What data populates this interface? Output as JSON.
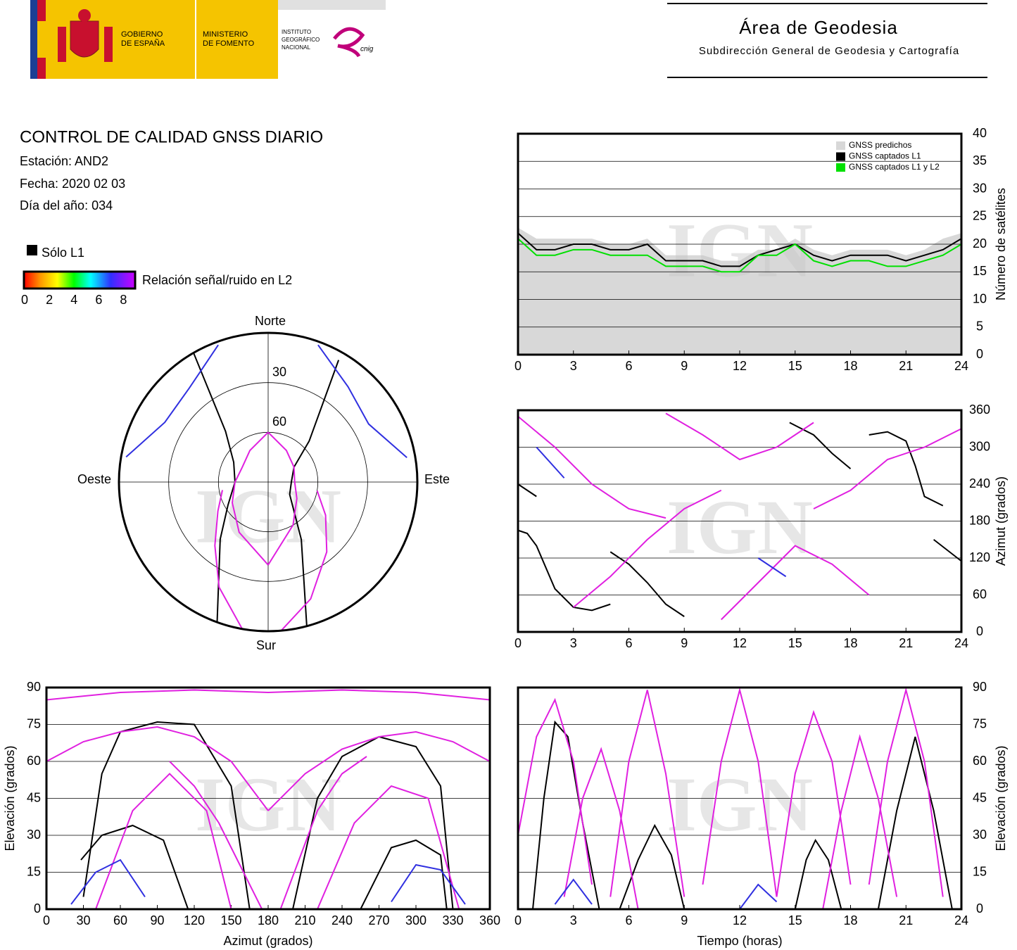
{
  "header": {
    "gobierno": [
      "GOBIERNO",
      "DE ESPAÑA"
    ],
    "ministerio": [
      "MINISTERIO",
      "DE FOMENTO"
    ],
    "instituto": [
      "INSTITUTO",
      "GEOGRÁFICO",
      "NACIONAL"
    ],
    "cnig": "cnig",
    "area": "Área de Geodesia",
    "subarea": "Subdirección General de Geodesia y Cartografía"
  },
  "report": {
    "title": "CONTROL DE CALIDAD GNSS DIARIO",
    "station": "Estación: AND2",
    "date": "Fecha: 2020 02 03",
    "doy": "Día del año: 034"
  },
  "legend": {
    "l1_only": "Sólo L1",
    "snr_label": "Relación señal/ruido en L2",
    "snr_lim": [
      0,
      9
    ],
    "snr_ticks": [
      0,
      2,
      4,
      6,
      8
    ]
  },
  "watermark": "IGN",
  "chart_data": [
    {
      "type": "polar",
      "directions": {
        "north": "Norte",
        "south": "Sur",
        "east": "Este",
        "west": "Oeste"
      },
      "rlim": [
        0,
        90
      ],
      "rticks": [
        30,
        60
      ],
      "series": [
        {
          "color": "#000000",
          "x": [
            30,
            45,
            60,
            90,
            120,
            150,
            165
          ],
          "values": [
            5,
            55,
            72,
            76,
            75,
            50,
            0
          ]
        },
        {
          "color": "#000000",
          "x": [
            200,
            220,
            240,
            270,
            300,
            320,
            330
          ],
          "values": [
            0,
            45,
            62,
            70,
            66,
            50,
            0
          ]
        },
        {
          "color": "#e020e0",
          "x": [
            0,
            30,
            60,
            90,
            120,
            150,
            180
          ],
          "values": [
            60,
            68,
            72,
            74,
            70,
            60,
            40
          ]
        },
        {
          "color": "#e020e0",
          "x": [
            180,
            210,
            240,
            270,
            300,
            330,
            360
          ],
          "values": [
            40,
            55,
            65,
            70,
            72,
            68,
            60
          ]
        },
        {
          "color": "#e020e0",
          "x": [
            100,
            120,
            140,
            160,
            175
          ],
          "values": [
            60,
            50,
            35,
            15,
            0
          ]
        },
        {
          "color": "#e020e0",
          "x": [
            190,
            205,
            220,
            240,
            260
          ],
          "values": [
            0,
            20,
            40,
            55,
            62
          ]
        },
        {
          "color": "#3030e0",
          "x": [
            20,
            40,
            60,
            80
          ],
          "values": [
            2,
            15,
            20,
            5
          ]
        },
        {
          "color": "#3030e0",
          "x": [
            280,
            300,
            320,
            340
          ],
          "values": [
            3,
            18,
            16,
            2
          ]
        }
      ]
    },
    {
      "type": "line",
      "ylabel": "Número de satélites",
      "xlim": [
        0,
        24
      ],
      "xticks": [
        0,
        3,
        6,
        9,
        12,
        15,
        18,
        21,
        24
      ],
      "ylim": [
        0,
        40
      ],
      "yticks": [
        0,
        5,
        10,
        15,
        20,
        25,
        30,
        35,
        40
      ],
      "grid": true,
      "legend": "upper right",
      "series": [
        {
          "name": "GNSS predichos",
          "color": "#d8d8d8",
          "style": "area",
          "x": [
            0,
            1,
            2,
            3,
            4,
            5,
            6,
            7,
            8,
            9,
            10,
            11,
            12,
            13,
            14,
            15,
            16,
            17,
            18,
            19,
            20,
            21,
            22,
            23,
            24
          ],
          "values": [
            23,
            21,
            21,
            21,
            21,
            20,
            20,
            21,
            18,
            18,
            18,
            17,
            17,
            19,
            19,
            21,
            19,
            18,
            19,
            19,
            19,
            18,
            19,
            21,
            22
          ]
        },
        {
          "name": "GNSS captados L1",
          "color": "#000000",
          "x": [
            0,
            1,
            2,
            3,
            4,
            5,
            6,
            7,
            8,
            9,
            10,
            11,
            12,
            13,
            14,
            15,
            16,
            17,
            18,
            19,
            20,
            21,
            22,
            23,
            24
          ],
          "values": [
            22,
            19,
            19,
            20,
            20,
            19,
            19,
            20,
            17,
            17,
            17,
            16,
            16,
            18,
            19,
            20,
            18,
            17,
            18,
            18,
            18,
            17,
            18,
            19,
            21
          ]
        },
        {
          "name": "GNSS captados L1 y L2",
          "color": "#00e000",
          "x": [
            0,
            1,
            2,
            3,
            4,
            5,
            6,
            7,
            8,
            9,
            10,
            11,
            12,
            13,
            14,
            15,
            16,
            17,
            18,
            19,
            20,
            21,
            22,
            23,
            24
          ],
          "values": [
            21,
            18,
            18,
            19,
            19,
            18,
            18,
            18,
            16,
            16,
            16,
            15,
            15,
            18,
            18,
            20,
            17,
            16,
            17,
            17,
            16,
            16,
            17,
            18,
            20
          ]
        }
      ]
    },
    {
      "type": "line",
      "ylabel": "Azimut (grados)",
      "xlim": [
        0,
        24
      ],
      "xticks": [
        0,
        3,
        6,
        9,
        12,
        15,
        18,
        21,
        24
      ],
      "ylim": [
        0,
        360
      ],
      "yticks": [
        0,
        60,
        120,
        180,
        240,
        300,
        360
      ],
      "grid": true,
      "series": [
        {
          "color": "#000000",
          "x": [
            0,
            0.5,
            1,
            2,
            3,
            4,
            5
          ],
          "values": [
            165,
            160,
            140,
            70,
            40,
            35,
            45
          ]
        },
        {
          "color": "#000000",
          "x": [
            0,
            1
          ],
          "values": [
            240,
            220
          ]
        },
        {
          "color": "#000000",
          "x": [
            5,
            6,
            7,
            8,
            9
          ],
          "values": [
            130,
            110,
            80,
            45,
            25
          ]
        },
        {
          "color": "#000000",
          "x": [
            14.7,
            16,
            17,
            18
          ],
          "values": [
            340,
            320,
            290,
            265
          ]
        },
        {
          "color": "#000000",
          "x": [
            19,
            20,
            21,
            21.5,
            22,
            23
          ],
          "values": [
            320,
            325,
            310,
            270,
            220,
            205
          ]
        },
        {
          "color": "#000000",
          "x": [
            22.5,
            24
          ],
          "values": [
            150,
            115
          ]
        },
        {
          "color": "#e020e0",
          "x": [
            0,
            2,
            4,
            6,
            8
          ],
          "values": [
            350,
            300,
            240,
            200,
            185
          ]
        },
        {
          "color": "#e020e0",
          "x": [
            3,
            5,
            7,
            9,
            11
          ],
          "values": [
            40,
            90,
            150,
            200,
            230
          ]
        },
        {
          "color": "#e020e0",
          "x": [
            8,
            10,
            12,
            14,
            16
          ],
          "values": [
            355,
            320,
            280,
            300,
            340
          ]
        },
        {
          "color": "#e020e0",
          "x": [
            11,
            13,
            15,
            17,
            19
          ],
          "values": [
            20,
            80,
            140,
            110,
            60
          ]
        },
        {
          "color": "#e020e0",
          "x": [
            16,
            18,
            20,
            22,
            24
          ],
          "values": [
            200,
            230,
            280,
            300,
            330
          ]
        },
        {
          "color": "#3030e0",
          "x": [
            1,
            2.5
          ],
          "values": [
            300,
            250
          ]
        },
        {
          "color": "#3030e0",
          "x": [
            13,
            14.5
          ],
          "values": [
            120,
            90
          ]
        }
      ]
    },
    {
      "type": "line",
      "xlabel": "Azimut (grados)",
      "ylabel": "Elevación (grados)",
      "xlim": [
        0,
        360
      ],
      "xticks": [
        0,
        30,
        60,
        90,
        120,
        150,
        180,
        210,
        240,
        270,
        300,
        330,
        360
      ],
      "ylim": [
        0,
        90
      ],
      "yticks": [
        0,
        15,
        30,
        45,
        60,
        75,
        90
      ],
      "grid": true,
      "series": [
        {
          "color": "#000000",
          "x": [
            30,
            45,
            60,
            90,
            120,
            150,
            165
          ],
          "values": [
            5,
            55,
            72,
            76,
            75,
            50,
            0
          ]
        },
        {
          "color": "#000000",
          "x": [
            28,
            45,
            70,
            95,
            115
          ],
          "values": [
            20,
            30,
            34,
            28,
            0
          ]
        },
        {
          "color": "#000000",
          "x": [
            200,
            220,
            240,
            270,
            300,
            320,
            330
          ],
          "values": [
            0,
            45,
            62,
            70,
            66,
            50,
            0
          ]
        },
        {
          "color": "#000000",
          "x": [
            255,
            280,
            300,
            320,
            325
          ],
          "values": [
            0,
            25,
            28,
            22,
            0
          ]
        },
        {
          "color": "#e020e0",
          "x": [
            0,
            30,
            60,
            90,
            120,
            150,
            180
          ],
          "values": [
            60,
            68,
            72,
            74,
            70,
            60,
            40
          ]
        },
        {
          "color": "#e020e0",
          "x": [
            180,
            210,
            240,
            270,
            300,
            330,
            360
          ],
          "values": [
            40,
            55,
            65,
            70,
            72,
            68,
            60
          ]
        },
        {
          "color": "#e020e0",
          "x": [
            0,
            60,
            120,
            180,
            240,
            300,
            360
          ],
          "values": [
            85,
            88,
            89,
            88,
            89,
            88,
            85
          ]
        },
        {
          "color": "#e020e0",
          "x": [
            100,
            120,
            140,
            160,
            175
          ],
          "values": [
            60,
            50,
            35,
            15,
            0
          ]
        },
        {
          "color": "#e020e0",
          "x": [
            190,
            205,
            220,
            240,
            260
          ],
          "values": [
            0,
            20,
            40,
            55,
            62
          ]
        },
        {
          "color": "#e020e0",
          "x": [
            40,
            70,
            100,
            130,
            150
          ],
          "values": [
            0,
            40,
            55,
            40,
            0
          ]
        },
        {
          "color": "#e020e0",
          "x": [
            220,
            250,
            280,
            310,
            335
          ],
          "values": [
            0,
            35,
            50,
            45,
            0
          ]
        },
        {
          "color": "#3030e0",
          "x": [
            20,
            40,
            60,
            80
          ],
          "values": [
            2,
            15,
            20,
            5
          ]
        },
        {
          "color": "#3030e0",
          "x": [
            280,
            300,
            320,
            340
          ],
          "values": [
            3,
            18,
            16,
            2
          ]
        }
      ]
    },
    {
      "type": "line",
      "xlabel": "Tiempo (horas)",
      "ylabel": "Elevación (grados)",
      "xlim": [
        0,
        24
      ],
      "xticks": [
        0,
        3,
        6,
        9,
        12,
        15,
        18,
        21,
        24
      ],
      "ylim": [
        0,
        90
      ],
      "yticks": [
        0,
        15,
        30,
        45,
        60,
        75,
        90
      ],
      "grid": true,
      "series": [
        {
          "color": "#000000",
          "x": [
            0.8,
            1.4,
            2,
            2.7,
            3.5,
            4.4
          ],
          "values": [
            0,
            45,
            76,
            70,
            35,
            0
          ]
        },
        {
          "color": "#000000",
          "x": [
            5.5,
            6.5,
            7.4,
            8.3,
            9
          ],
          "values": [
            0,
            20,
            34,
            22,
            0
          ]
        },
        {
          "color": "#000000",
          "x": [
            15,
            15.6,
            16.1,
            16.8,
            17.5
          ],
          "values": [
            0,
            20,
            28,
            20,
            0
          ]
        },
        {
          "color": "#000000",
          "x": [
            19.5,
            20.5,
            21.5,
            22.5,
            23.5
          ],
          "values": [
            0,
            40,
            70,
            40,
            0
          ]
        },
        {
          "color": "#e020e0",
          "x": [
            0,
            1,
            2,
            3,
            4
          ],
          "values": [
            30,
            70,
            85,
            60,
            10
          ]
        },
        {
          "color": "#e020e0",
          "x": [
            5,
            6,
            7,
            8,
            9
          ],
          "values": [
            5,
            60,
            89,
            55,
            5
          ]
        },
        {
          "color": "#e020e0",
          "x": [
            10,
            11,
            12,
            13,
            14
          ],
          "values": [
            10,
            60,
            89,
            60,
            5
          ]
        },
        {
          "color": "#e020e0",
          "x": [
            14,
            15,
            16,
            17,
            18
          ],
          "values": [
            5,
            55,
            80,
            60,
            10
          ]
        },
        {
          "color": "#e020e0",
          "x": [
            19,
            20,
            21,
            22,
            23
          ],
          "values": [
            10,
            60,
            89,
            60,
            5
          ]
        },
        {
          "color": "#e020e0",
          "x": [
            2.5,
            3.5,
            4.5,
            5.5,
            6.5
          ],
          "values": [
            5,
            45,
            65,
            40,
            0
          ]
        },
        {
          "color": "#e020e0",
          "x": [
            16.5,
            17.5,
            18.5,
            19.5,
            20.5
          ],
          "values": [
            0,
            40,
            70,
            45,
            5
          ]
        },
        {
          "color": "#3030e0",
          "x": [
            2,
            3,
            4
          ],
          "values": [
            2,
            12,
            2
          ]
        },
        {
          "color": "#3030e0",
          "x": [
            12,
            13,
            14
          ],
          "values": [
            0,
            10,
            3
          ]
        }
      ]
    }
  ]
}
